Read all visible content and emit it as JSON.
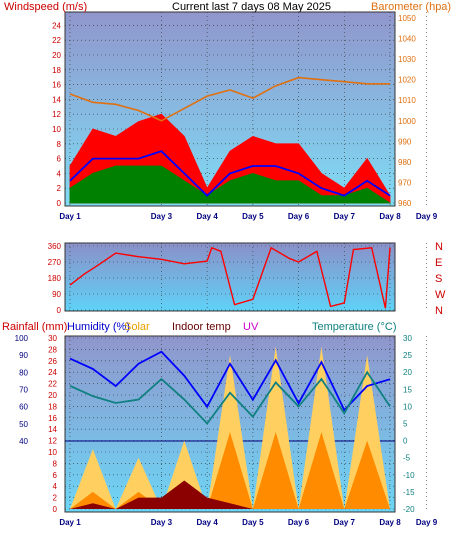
{
  "chart_data": [
    {
      "id": "wind_baro",
      "type": "line",
      "title": "Current last 7 days 08 May 2025",
      "y_left_label": "Windspeed (m/s)",
      "y_right_label": "Barometer (hpa)",
      "y_left_ticks": [
        0,
        2,
        4,
        6,
        8,
        10,
        12,
        14,
        16,
        18,
        20,
        22,
        24
      ],
      "y_right_ticks": [
        960,
        970,
        980,
        990,
        1000,
        1010,
        1020,
        1030,
        1040,
        1050
      ],
      "ylim_left": [
        0,
        25
      ],
      "ylim_right": [
        960,
        1050
      ],
      "x_labels": [
        "Day 1",
        "Day 3",
        "Day 4",
        "Day 5",
        "Day 6",
        "Day 7",
        "Day 8",
        "Day 9"
      ],
      "grid": true,
      "x": [
        0.0,
        0.5,
        1.0,
        1.5,
        2.0,
        2.5,
        3.0,
        3.5,
        4.0,
        4.5,
        5.0,
        5.5,
        6.0,
        6.5,
        7.0
      ],
      "series": [
        {
          "role": "gust",
          "color": "#ff0000",
          "values": [
            5,
            10,
            9,
            11,
            12,
            9,
            2,
            7,
            9,
            8,
            8,
            4,
            2,
            6,
            1
          ]
        },
        {
          "role": "average",
          "color": "#0000ff",
          "values": [
            3,
            6,
            6,
            6,
            7,
            4,
            1,
            4,
            5,
            5,
            4,
            2,
            1,
            3,
            1
          ]
        },
        {
          "role": "minimum",
          "color": "#008000",
          "values": [
            2,
            4,
            5,
            5,
            5,
            3,
            1,
            3,
            4,
            3,
            3,
            1,
            1,
            2,
            0
          ]
        },
        {
          "role": "pressure",
          "color": "#e07010",
          "axis": "right",
          "values": [
            1013,
            1009,
            1008,
            1005,
            1000,
            1006,
            1012,
            1015,
            1011,
            1017,
            1021,
            1020,
            1019,
            1018,
            1018
          ]
        }
      ]
    },
    {
      "id": "wind_direction",
      "type": "line",
      "y_left_ticks": [
        0,
        90,
        180,
        270,
        360
      ],
      "y_right_ticks": [
        "N",
        "W",
        "S",
        "E",
        "N"
      ],
      "ylim": [
        0,
        360
      ],
      "x_labels": [
        "Day 1",
        "Day 3",
        "Day 4",
        "Day 5",
        "Day 6",
        "Day 7",
        "Day 8",
        "Day 9"
      ],
      "grid": true,
      "x": [
        0.0,
        0.3,
        0.6,
        1.0,
        1.5,
        2.0,
        2.5,
        3.0,
        3.1,
        3.3,
        3.6,
        4.0,
        4.4,
        4.8,
        5.0,
        5.4,
        5.7,
        6.0,
        6.2,
        6.6,
        6.9,
        7.0
      ],
      "series": [
        {
          "color": "#ff0000",
          "values": [
            140,
            200,
            250,
            320,
            300,
            285,
            260,
            275,
            350,
            330,
            30,
            60,
            350,
            290,
            270,
            330,
            20,
            40,
            340,
            350,
            10,
            350
          ]
        }
      ]
    },
    {
      "id": "rain_hum_temp",
      "type": "line",
      "legend": [
        "Rainfall (mm)",
        "Humidity (%)",
        "Solar",
        "Indoor temp",
        "UV",
        "Temperature (°C)"
      ],
      "y_label_right": "Temperature (°C)",
      "humidity_ticks": [
        40,
        50,
        60,
        70,
        80,
        90,
        100
      ],
      "rain_ticks": [
        0,
        2,
        4,
        6,
        8,
        10,
        12,
        14,
        16,
        18,
        20,
        22,
        24,
        26,
        28,
        30
      ],
      "temp_ticks": [
        30,
        25,
        20,
        15,
        10,
        5,
        0,
        -5,
        -10,
        -15,
        -20
      ],
      "x_labels": [
        "Day 1",
        "Day 3",
        "Day 4",
        "Day 5",
        "Day 6",
        "Day 7",
        "Day 8",
        "Day 9"
      ],
      "grid": true,
      "x": [
        0.0,
        0.5,
        1.0,
        1.5,
        2.0,
        2.5,
        3.0,
        3.5,
        4.0,
        4.5,
        5.0,
        5.5,
        6.0,
        6.5,
        7.0
      ],
      "series": [
        {
          "role": "humidity",
          "color": "#0000ff",
          "values": [
            88,
            82,
            72,
            85,
            92,
            78,
            60,
            85,
            64,
            87,
            62,
            86,
            58,
            72,
            76
          ]
        },
        {
          "role": "temperature",
          "color": "#108080",
          "values": [
            16,
            13,
            11,
            12,
            18,
            12,
            5,
            14,
            7,
            17,
            10,
            18,
            8,
            20,
            10
          ]
        },
        {
          "role": "solar",
          "color": "#ffd060",
          "values": [
            0,
            35,
            0,
            30,
            0,
            40,
            0,
            90,
            0,
            95,
            0,
            95,
            0,
            90,
            0
          ]
        },
        {
          "role": "uv",
          "color": "#ff8c00",
          "values": [
            0,
            10,
            0,
            10,
            0,
            15,
            0,
            45,
            0,
            45,
            0,
            45,
            0,
            40,
            0
          ]
        },
        {
          "role": "rain",
          "color": "#8b0000",
          "values": [
            0,
            1,
            0,
            2,
            2,
            5,
            2,
            1,
            0,
            0,
            0,
            0,
            0,
            0,
            0
          ]
        }
      ]
    }
  ]
}
